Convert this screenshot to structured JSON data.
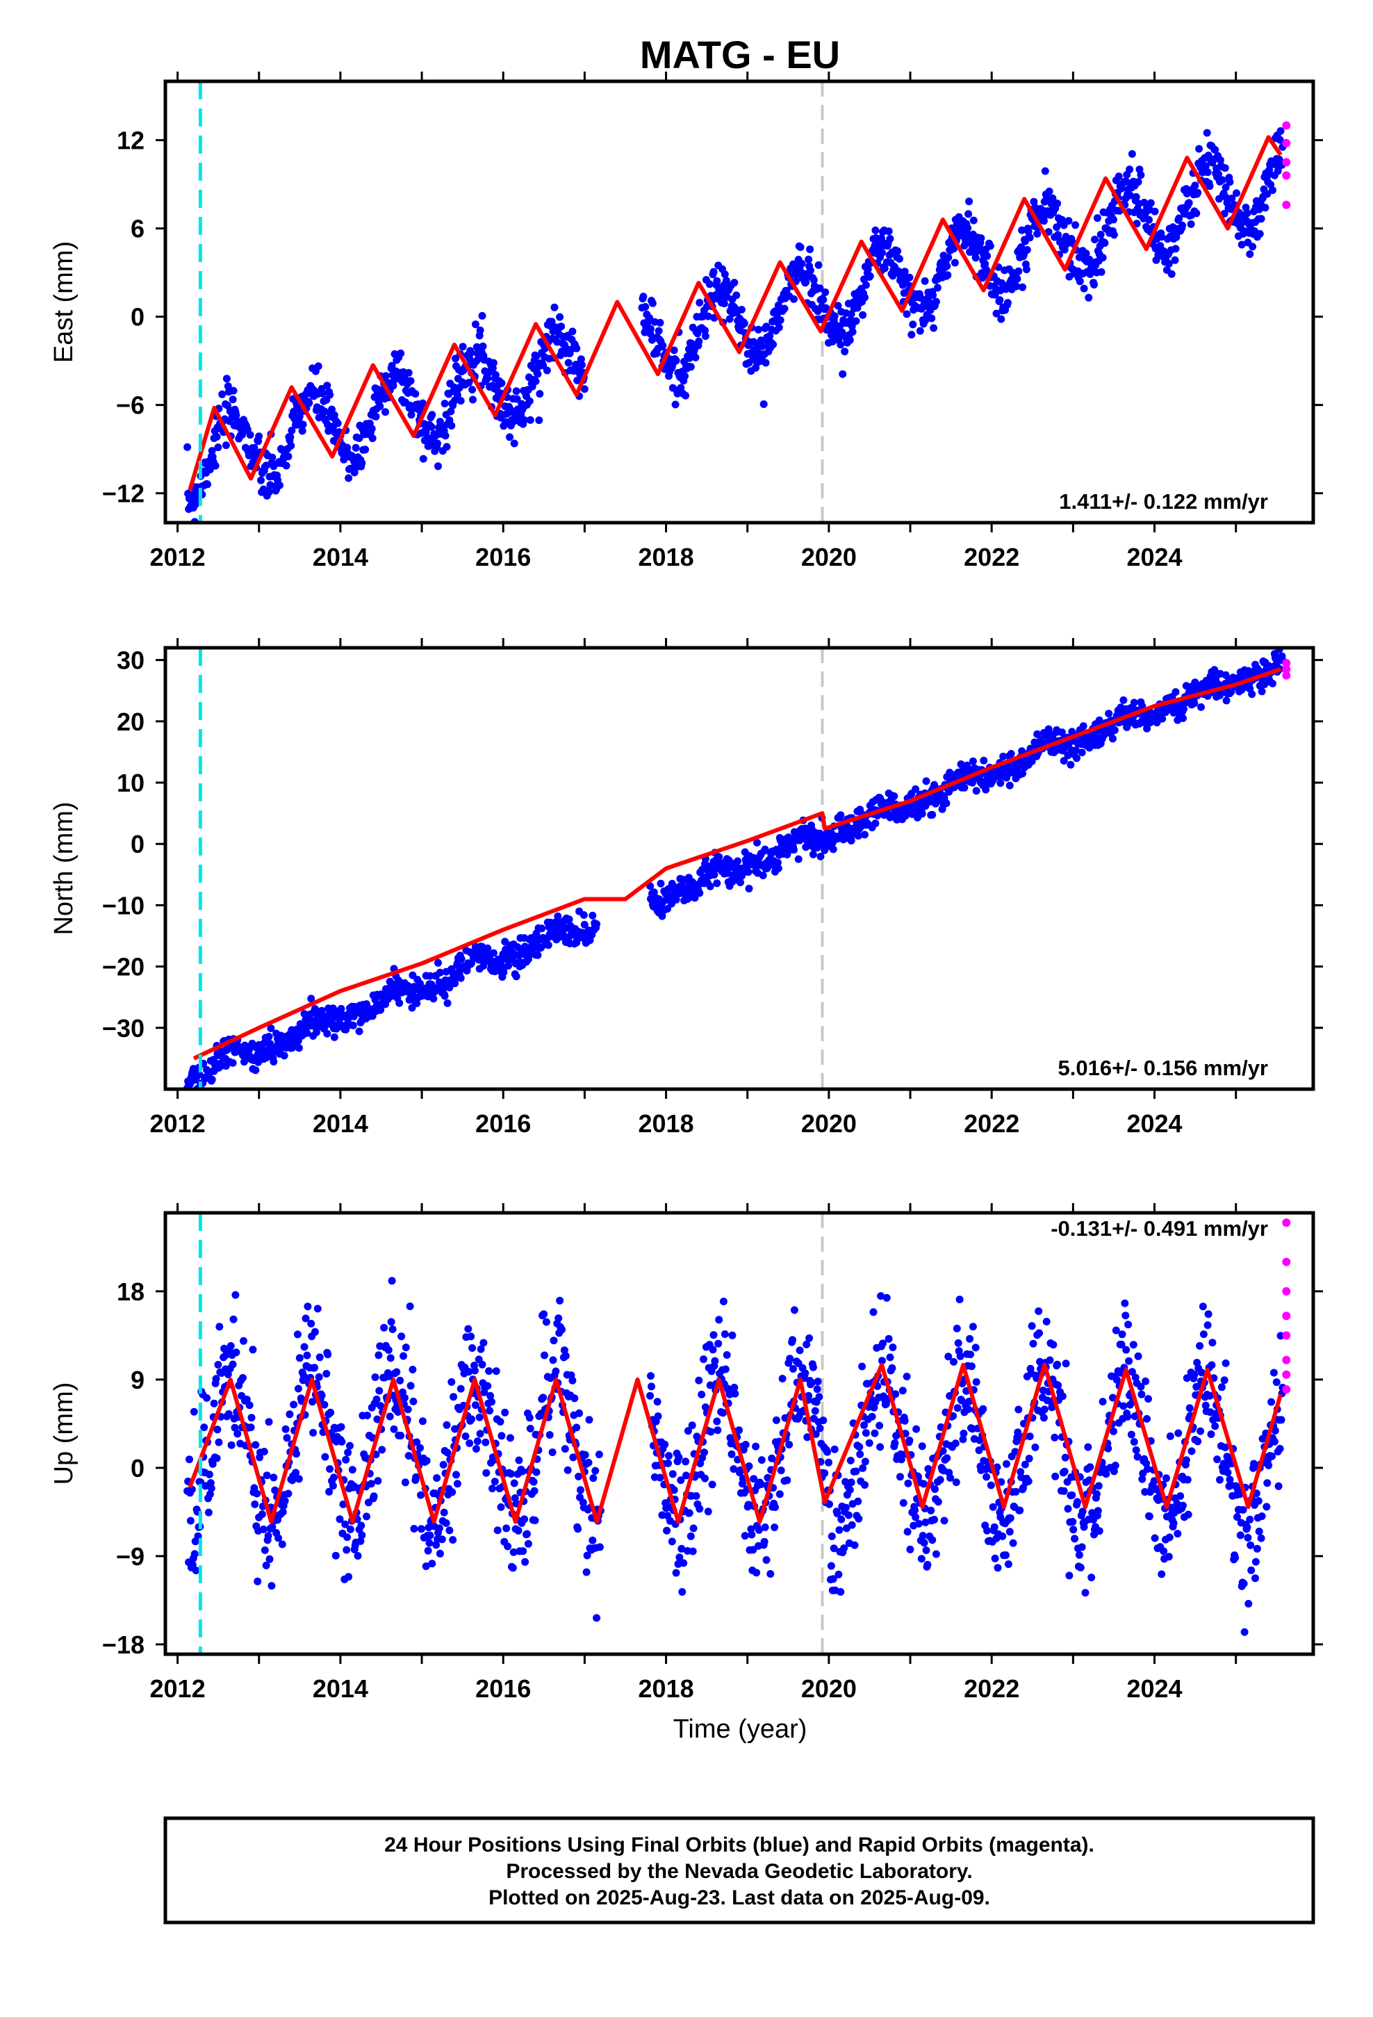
{
  "title": "MATG - EU",
  "colors": {
    "final": "#0000ff",
    "rapid": "#ff00ff",
    "model": "#ff0000",
    "equip_change": "#00e5ee",
    "other_event": "#c8c8c8"
  },
  "xlabel": "Time (year)",
  "xticks": [
    "2012",
    "2014",
    "2016",
    "2018",
    "2020",
    "2022",
    "2024"
  ],
  "xlim": [
    2011.85,
    2025.95
  ],
  "events": {
    "cyan_line_year": 2012.28,
    "gray_line_year": 2019.92
  },
  "footer": {
    "line1": "24 Hour Positions Using Final Orbits (blue) and Rapid Orbits (magenta).",
    "line2": "Processed by the Nevada Geodetic Laboratory.",
    "line3": "Plotted on 2025-Aug-23. Last data on 2025-Aug-09."
  },
  "chart_data": [
    {
      "type": "scatter",
      "component": "East",
      "ylabel": "East (mm)",
      "ylim": [
        -14,
        16
      ],
      "yticks": [
        -12,
        -6,
        0,
        6,
        12
      ],
      "rate_label": "1.411+/- 0.122 mm/yr",
      "velocity_mm_per_yr": 1.411,
      "annual_amplitude_mm": 2.5,
      "semiannual_amplitude_mm": 0.0,
      "intercept_mm": 0.5,
      "reference_year": 2019.5,
      "noise_mm": 0.9,
      "data_gap": [
        2017.0,
        2017.7
      ],
      "data_start": 2012.12,
      "data_end": 2025.58,
      "model_fit_points": [
        [
          2012.15,
          -11.8
        ],
        [
          2012.45,
          -6.2
        ],
        [
          2012.9,
          -11.0
        ],
        [
          2013.4,
          -4.8
        ],
        [
          2013.9,
          -9.5
        ],
        [
          2014.4,
          -3.3
        ],
        [
          2014.9,
          -8.1
        ],
        [
          2015.4,
          -1.9
        ],
        [
          2015.9,
          -6.7
        ],
        [
          2016.4,
          -0.5
        ],
        [
          2016.9,
          -5.3
        ],
        [
          2017.4,
          1.0
        ],
        [
          2017.9,
          -3.9
        ],
        [
          2018.4,
          2.3
        ],
        [
          2018.9,
          -2.4
        ],
        [
          2019.4,
          3.7
        ],
        [
          2019.9,
          -1.0
        ],
        [
          2020.4,
          5.1
        ],
        [
          2020.9,
          0.4
        ],
        [
          2021.4,
          6.6
        ],
        [
          2021.9,
          1.8
        ],
        [
          2022.4,
          8.0
        ],
        [
          2022.9,
          3.2
        ],
        [
          2023.4,
          9.4
        ],
        [
          2023.9,
          4.6
        ],
        [
          2024.4,
          10.8
        ],
        [
          2024.9,
          6.0
        ],
        [
          2025.4,
          12.2
        ],
        [
          2025.55,
          11.0
        ]
      ],
      "rapid_orbit_points": [
        [
          2025.62,
          13.0
        ],
        [
          2025.62,
          11.8
        ],
        [
          2025.62,
          10.5
        ],
        [
          2025.62,
          9.6
        ],
        [
          2025.62,
          7.6
        ]
      ]
    },
    {
      "type": "scatter",
      "component": "North",
      "ylabel": "North (mm)",
      "ylim": [
        -40,
        32
      ],
      "yticks": [
        -30,
        -20,
        -10,
        0,
        10,
        20,
        30
      ],
      "rate_label": "5.016+/- 0.156 mm/yr",
      "velocity_mm_per_yr": 5.016,
      "annual_amplitude_mm": 1.0,
      "semiannual_amplitude_mm": 0.5,
      "intercept_mm": -0.8,
      "reference_year": 2019.5,
      "noise_mm": 1.2,
      "data_gap": [
        2017.15,
        2017.8
      ],
      "data_start": 2012.12,
      "data_end": 2025.58,
      "model_fit_points": [
        [
          2012.2,
          -35.0
        ],
        [
          2013.0,
          -30.0
        ],
        [
          2014.0,
          -24.0
        ],
        [
          2015.0,
          -19.5
        ],
        [
          2016.0,
          -14.0
        ],
        [
          2017.0,
          -9.0
        ],
        [
          2017.5,
          -9.0
        ],
        [
          2018.0,
          -4.0
        ],
        [
          2019.0,
          0.5
        ],
        [
          2019.92,
          5.0
        ],
        [
          2019.95,
          2.5
        ],
        [
          2021.0,
          7.0
        ],
        [
          2022.0,
          12.5
        ],
        [
          2023.0,
          17.5
        ],
        [
          2024.0,
          22.5
        ],
        [
          2025.0,
          26.0
        ],
        [
          2025.55,
          28.5
        ]
      ],
      "rapid_orbit_points": [
        [
          2025.62,
          29.5
        ],
        [
          2025.62,
          28.5
        ],
        [
          2025.62,
          27.5
        ]
      ]
    },
    {
      "type": "scatter",
      "component": "Up",
      "ylabel": "Up (mm)",
      "ylim": [
        -19,
        26
      ],
      "yticks": [
        -18,
        -9,
        0,
        9,
        18
      ],
      "rate_label": "-0.131+/- 0.491 mm/yr",
      "velocity_mm_per_yr": -0.131,
      "annual_amplitude_mm": 7.5,
      "semiannual_amplitude_mm": 0.0,
      "intercept_mm": 1.8,
      "reference_year": 2019.5,
      "noise_mm": 3.6,
      "data_gap": [
        2017.2,
        2017.8
      ],
      "data_start": 2012.12,
      "data_end": 2025.58,
      "model_fit_points": [
        [
          2012.15,
          -2.0
        ],
        [
          2012.65,
          9.0
        ],
        [
          2013.15,
          -5.5
        ],
        [
          2013.65,
          9.0
        ],
        [
          2014.15,
          -5.5
        ],
        [
          2014.65,
          9.0
        ],
        [
          2015.15,
          -5.5
        ],
        [
          2015.65,
          9.0
        ],
        [
          2016.15,
          -5.5
        ],
        [
          2016.65,
          9.0
        ],
        [
          2017.15,
          -5.5
        ],
        [
          2017.65,
          9.0
        ],
        [
          2018.15,
          -5.5
        ],
        [
          2018.65,
          9.0
        ],
        [
          2019.15,
          -5.5
        ],
        [
          2019.65,
          9.0
        ],
        [
          2019.95,
          -3.5
        ],
        [
          2020.65,
          10.5
        ],
        [
          2021.15,
          -4.0
        ],
        [
          2021.65,
          10.5
        ],
        [
          2022.15,
          -4.0
        ],
        [
          2022.65,
          10.5
        ],
        [
          2023.15,
          -4.0
        ],
        [
          2023.65,
          10.0
        ],
        [
          2024.15,
          -4.0
        ],
        [
          2024.65,
          10.0
        ],
        [
          2025.15,
          -4.0
        ],
        [
          2025.55,
          7.5
        ]
      ],
      "rapid_orbit_points": [
        [
          2025.62,
          25.0
        ],
        [
          2025.62,
          21.0
        ],
        [
          2025.62,
          18.0
        ],
        [
          2025.62,
          15.5
        ],
        [
          2025.62,
          13.5
        ],
        [
          2025.62,
          11.0
        ],
        [
          2025.62,
          9.5
        ],
        [
          2025.62,
          8.0
        ]
      ]
    }
  ]
}
